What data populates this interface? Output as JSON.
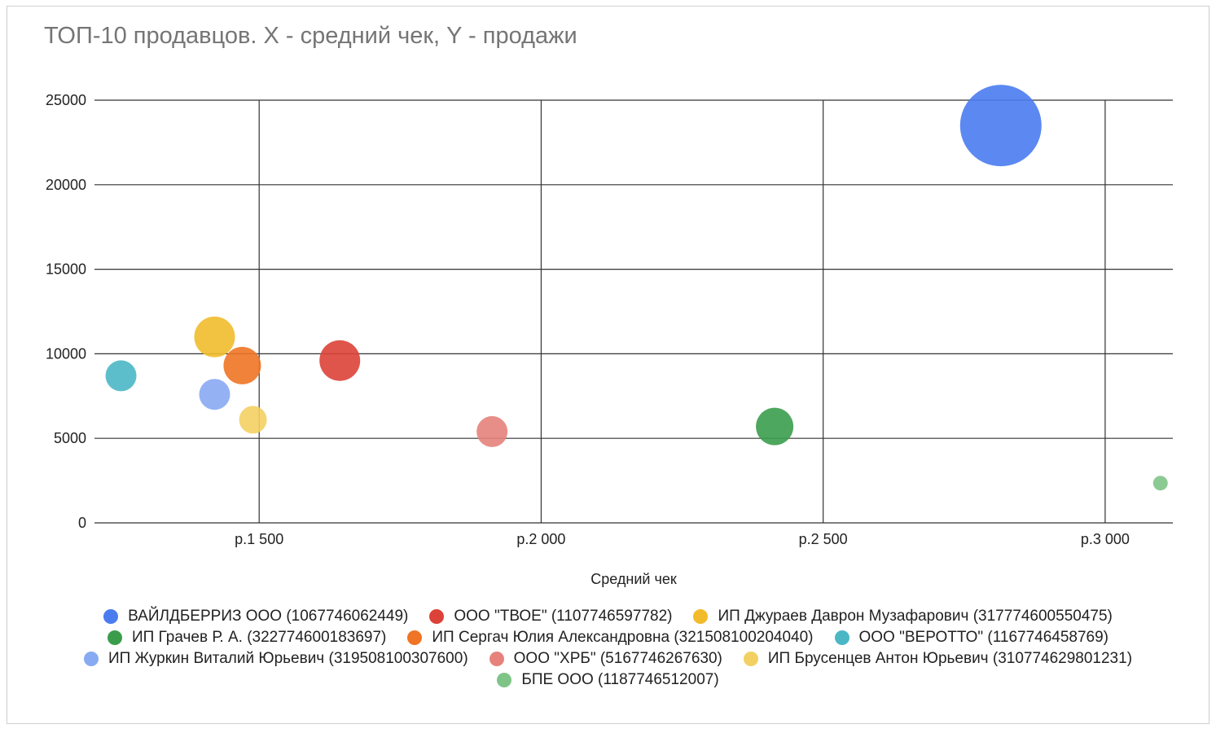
{
  "chart_data": {
    "type": "bubble",
    "title": "ТОП-10 продавцов. X - средний чек, Y - продажи",
    "xlabel": "Средний чек",
    "ylabel": "",
    "xlim": [
      1208,
      3120
    ],
    "ylim": [
      0,
      25000
    ],
    "x_ticks": [
      1500,
      2000,
      2500,
      3000
    ],
    "x_tick_labels": [
      "р.1 500",
      "р.2 000",
      "р.2 500",
      "р.3 000"
    ],
    "y_ticks": [
      0,
      5000,
      10000,
      15000,
      20000,
      25000
    ],
    "y_tick_labels": [
      "0",
      "5000",
      "10000",
      "15000",
      "20000",
      "25000"
    ],
    "grid": true,
    "legend_position": "bottom",
    "series": [
      {
        "name": "ВАЙЛДБЕРРИЗ ООО (1067746062449)",
        "x": 2815,
        "y": 23500,
        "size": 50,
        "color": "#4a7cf0"
      },
      {
        "name": "ООО \"ТВОЕ\" (1107746597782)",
        "x": 1643,
        "y": 9600,
        "size": 25,
        "color": "#dc4237"
      },
      {
        "name": "ИП Джураев Даврон Музафарович (317774600550475)",
        "x": 1421,
        "y": 11000,
        "size": 25,
        "color": "#f1bb2c"
      },
      {
        "name": "ИП Грачев Р. А. (322774600183697)",
        "x": 2414,
        "y": 5700,
        "size": 23,
        "color": "#3b9d4c"
      },
      {
        "name": "ИП Сергач Юлия Александровна (321508100204040)",
        "x": 1470,
        "y": 9300,
        "size": 23,
        "color": "#ef7425"
      },
      {
        "name": "ООО \"ВЕРОТТО\" (1167746458769)",
        "x": 1255,
        "y": 8700,
        "size": 19,
        "color": "#4bb7c5"
      },
      {
        "name": "ИП Журкин Виталий Юрьевич (319508100307600)",
        "x": 1421,
        "y": 7600,
        "size": 19,
        "color": "#88aaf2"
      },
      {
        "name": "ООО \"ХРБ\" (5167746267630)",
        "x": 1913,
        "y": 5400,
        "size": 19,
        "color": "#e6827b"
      },
      {
        "name": "ИП Брусенцев Антон Юрьевич (310774629801231)",
        "x": 1489,
        "y": 6100,
        "size": 17,
        "color": "#f3d062"
      },
      {
        "name": "БПЕ ООО (1187746512007)",
        "x": 3098,
        "y": 2350,
        "size": 9,
        "color": "#7fc487"
      }
    ]
  }
}
